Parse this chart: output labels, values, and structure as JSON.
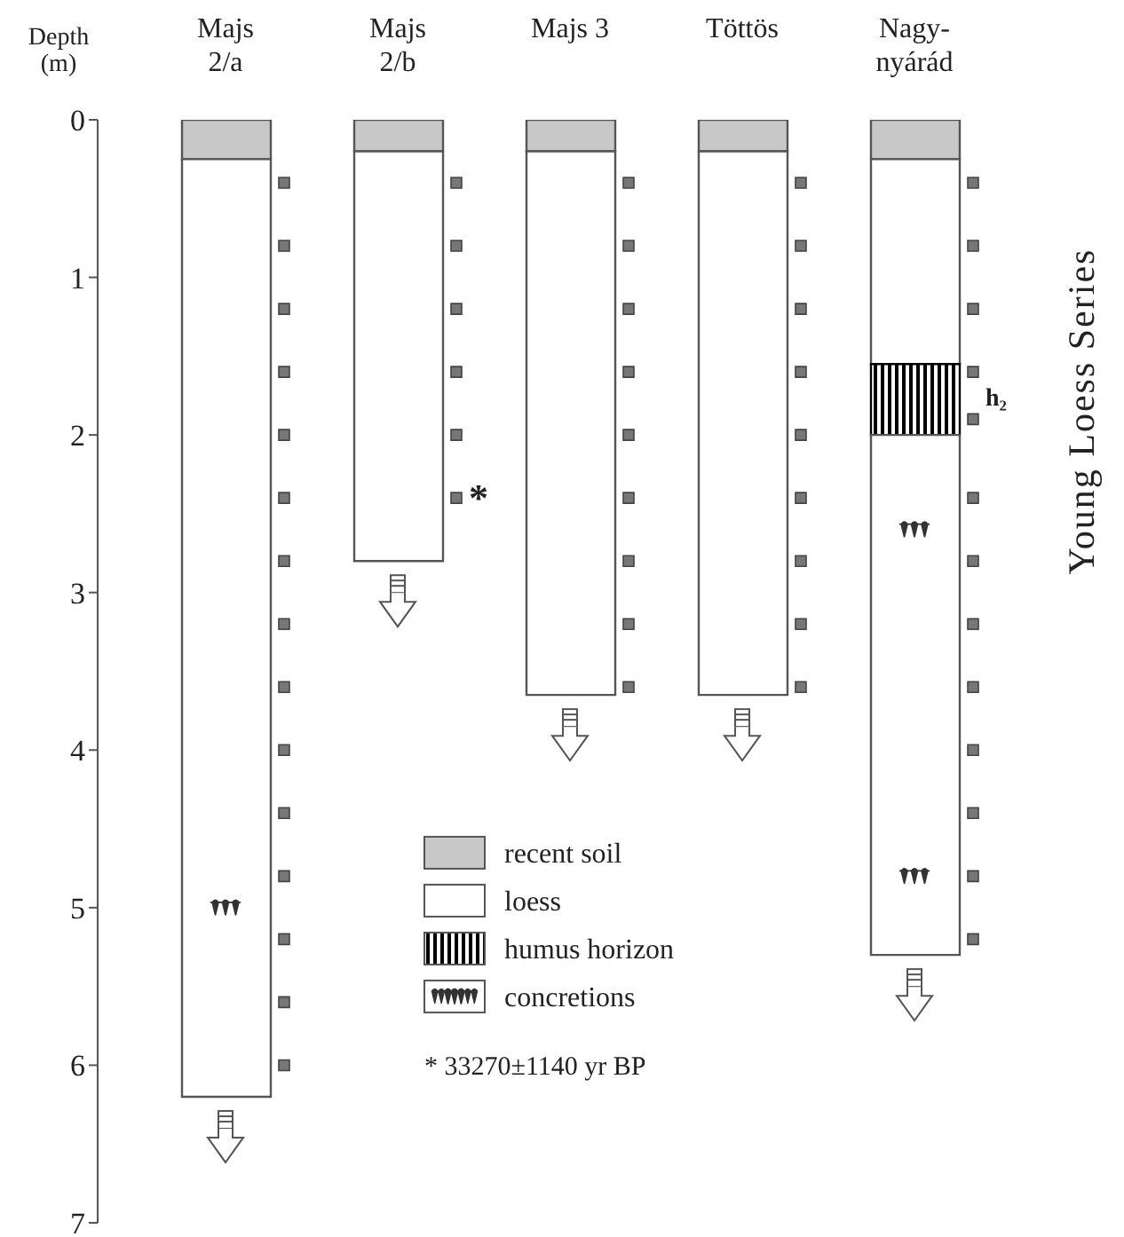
{
  "chart_data": {
    "type": "bar",
    "stacked": true,
    "ylabel": "Depth (m)",
    "categories": [
      "Majs 2/a",
      "Majs 2/b",
      "Majs 3",
      "Töttös",
      "Nagy-nyárád"
    ],
    "ylim": [
      7,
      0
    ],
    "yticks": [
      0,
      1,
      2,
      3,
      4,
      5,
      6,
      7
    ],
    "legend": "bottom",
    "series": [
      {
        "name": "recent soil",
        "color": "#c8c8c8",
        "values": [
          0.25,
          0.2,
          0.2,
          0.2,
          0.25
        ]
      },
      {
        "name": "loess",
        "color": "#ffffff",
        "values": [
          5.95,
          2.6,
          3.45,
          3.45,
          1.3
        ]
      },
      {
        "name": "humus horizon",
        "color": "#000000",
        "values": [
          null,
          null,
          null,
          null,
          0.45
        ]
      },
      {
        "color": "#ffffff",
        "values": [
          null,
          null,
          null,
          null,
          3.3
        ]
      },
      {
        "name": "concretions",
        "type": "scatter",
        "color": "#333333",
        "x": [
          "Majs 2/a",
          "Nagy-nyárád",
          "Nagy-nyárád"
        ],
        "values": [
          5.0,
          2.6,
          4.8
        ]
      },
      {
        "type": "scatter",
        "marker": "square",
        "color": "#777777",
        "x": [
          "Majs 2/a",
          "Majs 2/a",
          "Majs 2/a",
          "Majs 2/a",
          "Majs 2/a",
          "Majs 2/a",
          "Majs 2/a",
          "Majs 2/a",
          "Majs 2/a",
          "Majs 2/a",
          "Majs 2/a",
          "Majs 2/a",
          "Majs 2/a",
          "Majs 2/a",
          "Majs 2/a",
          "Majs 2/b",
          "Majs 2/b",
          "Majs 2/b",
          "Majs 2/b",
          "Majs 2/b",
          "Majs 2/b",
          "Majs 3",
          "Majs 3",
          "Majs 3",
          "Majs 3",
          "Majs 3",
          "Majs 3",
          "Majs 3",
          "Majs 3",
          "Majs 3",
          "Töttös",
          "Töttös",
          "Töttös",
          "Töttös",
          "Töttös",
          "Töttös",
          "Töttös",
          "Töttös",
          "Töttös",
          "Nagy-nyárád",
          "Nagy-nyárád",
          "Nagy-nyárád",
          "Nagy-nyárád",
          "Nagy-nyárád",
          "Nagy-nyárád",
          "Nagy-nyárád",
          "Nagy-nyárád",
          "Nagy-nyárád",
          "Nagy-nyárád",
          "Nagy-nyárád",
          "Nagy-nyárád",
          "Nagy-nyárád"
        ],
        "values": [
          0.4,
          0.8,
          1.2,
          1.6,
          2.0,
          2.4,
          2.8,
          3.2,
          3.6,
          4.0,
          4.4,
          4.8,
          5.2,
          5.6,
          6.0,
          0.4,
          0.8,
          1.2,
          1.6,
          2.0,
          2.4,
          0.4,
          0.8,
          1.2,
          1.6,
          2.0,
          2.4,
          2.8,
          3.2,
          3.6,
          0.4,
          0.8,
          1.2,
          1.6,
          2.0,
          2.4,
          2.8,
          3.2,
          3.6,
          0.4,
          0.8,
          1.2,
          1.6,
          1.9,
          2.4,
          2.8,
          3.2,
          3.6,
          4.0,
          4.4,
          4.8,
          5.2
        ]
      }
    ],
    "annotations": [
      "Young Loess Series",
      "*",
      "h₂",
      "* 33270±1140 yr BP"
    ]
  }
}
